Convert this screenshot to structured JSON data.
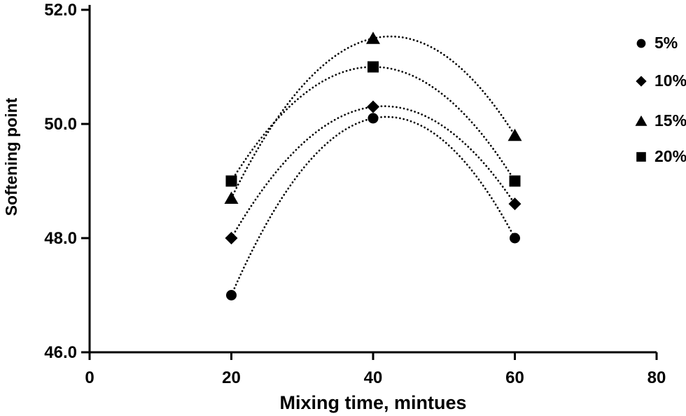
{
  "figure": {
    "background": "#ffffff",
    "ink_color": "#000000"
  },
  "chart_data": {
    "type": "scatter",
    "title": "",
    "xlabel": "Mixing time, mintues",
    "ylabel": "Softening point",
    "x": [
      20,
      40,
      60
    ],
    "series": [
      {
        "name": "5%",
        "marker": "circle",
        "values": [
          47.0,
          50.1,
          48.0
        ]
      },
      {
        "name": "10%",
        "marker": "diamond",
        "values": [
          48.0,
          50.3,
          48.6
        ]
      },
      {
        "name": "15%",
        "marker": "triangle",
        "values": [
          48.7,
          51.5,
          49.8
        ]
      },
      {
        "name": "20%",
        "marker": "square",
        "values": [
          49.0,
          51.0,
          49.0
        ]
      }
    ],
    "trendline": "dotted quadratic through each series",
    "xlim": [
      0,
      80
    ],
    "ylim": [
      46.0,
      52.0
    ],
    "xticks": [
      0,
      20,
      40,
      60,
      80
    ],
    "xtick_labels": [
      "0",
      "20",
      "40",
      "60",
      "80"
    ],
    "yticks": [
      46,
      48,
      50,
      52
    ],
    "ytick_labels": [
      "46.0",
      "48.0",
      "50.0",
      "52.0"
    ],
    "grid": false,
    "legend_position": "right",
    "marker_color": "#000000"
  }
}
